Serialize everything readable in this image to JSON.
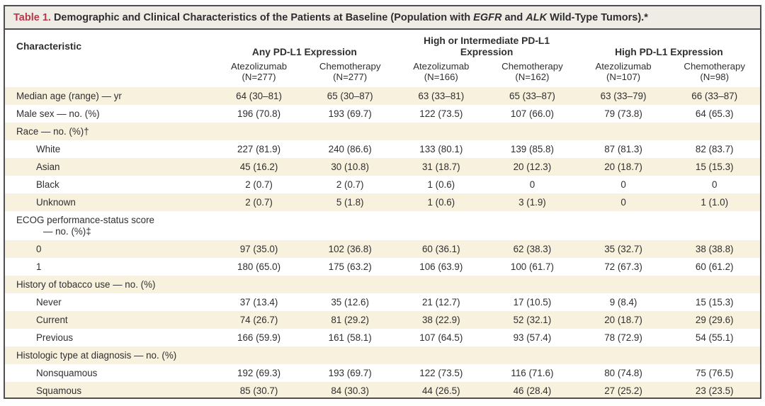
{
  "colors": {
    "accent_red": "#b5394b",
    "row_beige": "#f8f1de",
    "title_band_bg": "#efece5",
    "frame_border": "#4f4f53",
    "text": "#2f2f31"
  },
  "title": {
    "label": "Table 1.",
    "segment1": "Demographic and Clinical Characteristics of the Patients at Baseline (Population with",
    "gene1": "EGFR",
    "conj": "and",
    "gene2": "ALK",
    "segment2": "Wild-Type Tumors).*"
  },
  "header": {
    "characteristic_label": "Characteristic",
    "groups": [
      {
        "label": "Any PD-L1 Expression"
      },
      {
        "label": "High or Intermediate PD-L1 Expression"
      },
      {
        "label": "High PD-L1 Expression"
      }
    ],
    "columns": [
      {
        "drug": "Atezolizumab",
        "n": "(N=277)"
      },
      {
        "drug": "Chemotherapy",
        "n": "(N=277)"
      },
      {
        "drug": "Atezolizumab",
        "n": "(N=166)"
      },
      {
        "drug": "Chemotherapy",
        "n": "(N=162)"
      },
      {
        "drug": "Atezolizumab",
        "n": "(N=107)"
      },
      {
        "drug": "Chemotherapy",
        "n": "(N=98)"
      }
    ]
  },
  "rows": [
    {
      "label": "Median age (range) — yr",
      "indent": 0,
      "shade": "beige",
      "values": [
        "64 (30–81)",
        "65 (30–87)",
        "63 (33–81)",
        "65 (33–87)",
        "63 (33–79)",
        "66 (33–87)"
      ]
    },
    {
      "label": "Male sex — no. (%)",
      "indent": 0,
      "shade": "white",
      "values": [
        "196 (70.8)",
        "193 (69.7)",
        "122 (73.5)",
        "107 (66.0)",
        "79 (73.8)",
        "64 (65.3)"
      ]
    },
    {
      "label": "Race — no. (%)†",
      "indent": 0,
      "shade": "beige",
      "values": [
        "",
        "",
        "",
        "",
        "",
        ""
      ]
    },
    {
      "label": "White",
      "indent": 1,
      "shade": "white",
      "values": [
        "227 (81.9)",
        "240 (86.6)",
        "133 (80.1)",
        "139 (85.8)",
        "87 (81.3)",
        "82 (83.7)"
      ]
    },
    {
      "label": "Asian",
      "indent": 1,
      "shade": "beige",
      "values": [
        "45 (16.2)",
        "30 (10.8)",
        "31 (18.7)",
        "20 (12.3)",
        "20 (18.7)",
        "15 (15.3)"
      ]
    },
    {
      "label": "Black",
      "indent": 1,
      "shade": "white",
      "values": [
        "2 (0.7)",
        "2 (0.7)",
        "1 (0.6)",
        "0",
        "0",
        "0"
      ]
    },
    {
      "label": "Unknown",
      "indent": 1,
      "shade": "beige",
      "values": [
        "2 (0.7)",
        "5 (1.8)",
        "1 (0.6)",
        "3 (1.9)",
        "0",
        "1 (1.0)"
      ]
    },
    {
      "label": "ECOG performance-status score",
      "label2": "— no. (%)‡",
      "indent": 0,
      "shade": "white",
      "values": [
        "",
        "",
        "",
        "",
        "",
        ""
      ]
    },
    {
      "label": "0",
      "indent": 1,
      "shade": "beige",
      "values": [
        "97 (35.0)",
        "102 (36.8)",
        "60 (36.1)",
        "62 (38.3)",
        "35 (32.7)",
        "38 (38.8)"
      ]
    },
    {
      "label": "1",
      "indent": 1,
      "shade": "white",
      "values": [
        "180 (65.0)",
        "175 (63.2)",
        "106 (63.9)",
        "100 (61.7)",
        "72 (67.3)",
        "60 (61.2)"
      ]
    },
    {
      "label": "History of tobacco use — no. (%)",
      "indent": 0,
      "shade": "beige",
      "values": [
        "",
        "",
        "",
        "",
        "",
        ""
      ]
    },
    {
      "label": "Never",
      "indent": 1,
      "shade": "white",
      "values": [
        "37 (13.4)",
        "35 (12.6)",
        "21 (12.7)",
        "17 (10.5)",
        "9 (8.4)",
        "15 (15.3)"
      ]
    },
    {
      "label": "Current",
      "indent": 1,
      "shade": "beige",
      "values": [
        "74 (26.7)",
        "81 (29.2)",
        "38 (22.9)",
        "52 (32.1)",
        "20 (18.7)",
        "29 (29.6)"
      ]
    },
    {
      "label": "Previous",
      "indent": 1,
      "shade": "white",
      "values": [
        "166 (59.9)",
        "161 (58.1)",
        "107 (64.5)",
        "93 (57.4)",
        "78 (72.9)",
        "54 (55.1)"
      ]
    },
    {
      "label": "Histologic type at diagnosis — no. (%)",
      "indent": 0,
      "shade": "beige",
      "values": [
        "",
        "",
        "",
        "",
        "",
        ""
      ]
    },
    {
      "label": "Nonsquamous",
      "indent": 1,
      "shade": "white",
      "values": [
        "192 (69.3)",
        "193 (69.7)",
        "122 (73.5)",
        "116 (71.6)",
        "80 (74.8)",
        "75 (76.5)"
      ]
    },
    {
      "label": "Squamous",
      "indent": 1,
      "shade": "beige",
      "values": [
        "85 (30.7)",
        "84 (30.3)",
        "44 (26.5)",
        "46 (28.4)",
        "27 (25.2)",
        "23 (23.5)"
      ]
    }
  ]
}
